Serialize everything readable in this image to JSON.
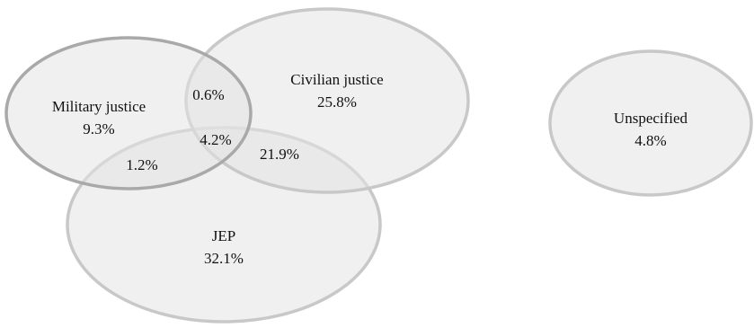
{
  "colors": {
    "fill": "#e4e4e4",
    "fill_opacity": 0.55,
    "stroke_light": "#c8c8c8",
    "stroke_dark": "#a9a9a9"
  },
  "sets": {
    "military": {
      "name": "Military justice",
      "value": "9.3%"
    },
    "civilian": {
      "name": "Civilian justice",
      "value": "25.8%"
    },
    "jep": {
      "name": "JEP",
      "value": "32.1%"
    },
    "unspecified": {
      "name": "Unspecified",
      "value": "4.8%"
    }
  },
  "overlaps": {
    "military_civilian": "0.6%",
    "military_civilian_jep": "4.2%",
    "military_jep": "1.2%",
    "civilian_jep": "21.9%"
  }
}
